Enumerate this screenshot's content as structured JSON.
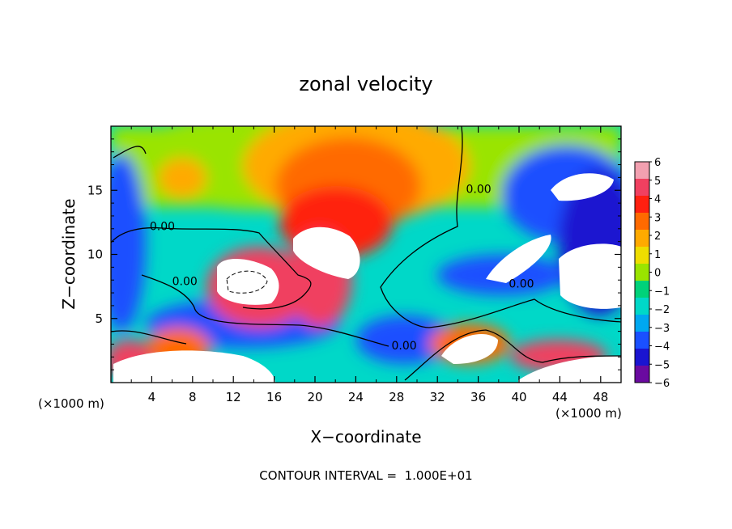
{
  "chart_data": {
    "type": "heatmap",
    "title": "zonal velocity",
    "xlabel": "X−coordinate",
    "ylabel": "Z−coordinate",
    "x_unit": "(×1000 m)",
    "z_unit": "(×1000 m)",
    "xlim": [
      0,
      50
    ],
    "ylim": [
      0,
      20
    ],
    "x_ticks": [
      4,
      8,
      12,
      16,
      20,
      24,
      28,
      32,
      36,
      40,
      44,
      48
    ],
    "y_ticks": [
      5,
      10,
      15
    ],
    "x_tick_labels": [
      "4",
      "8",
      "12",
      "16",
      "20",
      "24",
      "28",
      "32",
      "36",
      "40",
      "44",
      "48"
    ],
    "y_tick_labels": [
      "5",
      "10",
      "15"
    ],
    "colorbar": {
      "levels": [
        6,
        5,
        4,
        3,
        2,
        1,
        0,
        -1,
        -2,
        -3,
        -4,
        -5,
        -6
      ],
      "labels": [
        "6",
        "5",
        "4",
        "3",
        "2",
        "1",
        "0",
        "−1",
        "−2",
        "−3",
        "−4",
        "−5",
        "−6"
      ],
      "colors": [
        "#f2a0b0",
        "#f04060",
        "#ff2010",
        "#ff6a00",
        "#ffaa00",
        "#eedd00",
        "#9ae400",
        "#00d27a",
        "#00d8c8",
        "#00a8f0",
        "#1a50ff",
        "#1a14d0",
        "#6a0aa0"
      ]
    },
    "contour_labels": [
      {
        "text": "0.00",
        "x": 3.8,
        "z": 11.9
      },
      {
        "text": "0.00",
        "x": 6.0,
        "z": 7.6
      },
      {
        "text": "0.00",
        "x": 34.8,
        "z": 14.8
      },
      {
        "text": "0.00",
        "x": 39.0,
        "z": 7.4
      },
      {
        "text": "0.00",
        "x": 27.5,
        "z": 2.6
      }
    ],
    "footer": "CONTOUR INTERVAL =  1.000E+01"
  }
}
